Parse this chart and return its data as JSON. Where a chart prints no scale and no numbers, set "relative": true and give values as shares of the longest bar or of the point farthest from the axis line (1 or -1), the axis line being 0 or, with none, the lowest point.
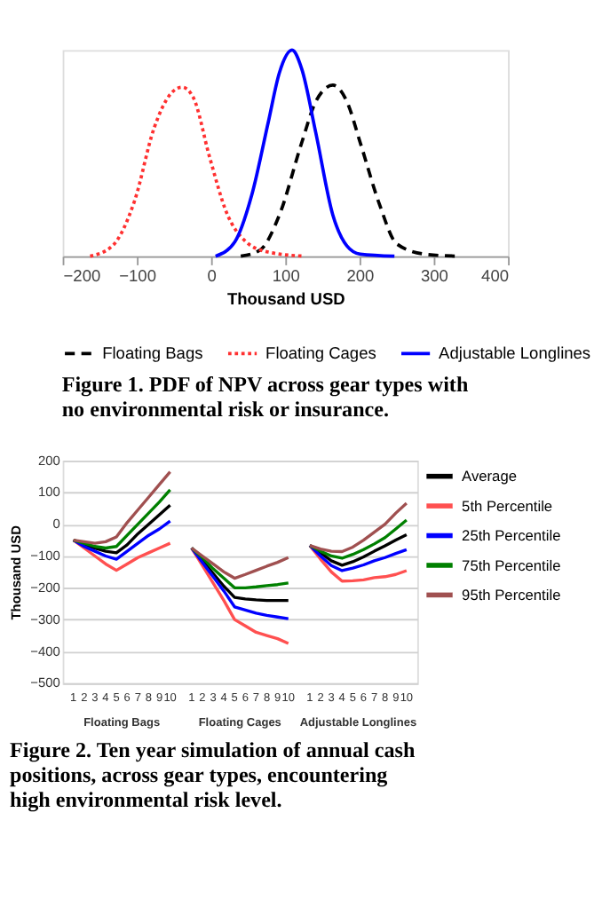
{
  "chart_data": [
    {
      "type": "line",
      "relative": true,
      "xlabel": "Thousand USD",
      "xlim": [
        -200,
        400
      ],
      "xticks": [
        -200,
        -100,
        0,
        100,
        200,
        300,
        400
      ],
      "legend": "bottom",
      "grid": false,
      "tick_labels": "x",
      "annotations": [
        "Figure 1.  PDF of NPV across gear types with no environmental risk or insurance."
      ],
      "series": [
        {
          "name": "Floating Bags",
          "color": "#000000",
          "line_style": "dashed",
          "x": [
            40,
            66,
            92,
            122,
            141,
            164,
            183,
            201,
            227,
            250,
            288,
            333
          ],
          "values": [
            0,
            0.03,
            0.2,
            0.55,
            0.75,
            0.83,
            0.75,
            0.55,
            0.25,
            0.06,
            0.01,
            0
          ]
        },
        {
          "name": "Floating Cages",
          "color": "#ff3030",
          "line_style": "dotted",
          "x": [
            -163,
            -133,
            -103,
            -77,
            -54,
            -39,
            -24,
            -2,
            21,
            47,
            77,
            126
          ],
          "values": [
            0,
            0.05,
            0.27,
            0.62,
            0.79,
            0.82,
            0.77,
            0.48,
            0.21,
            0.07,
            0.02,
            0
          ]
        },
        {
          "name": "Adjustable Longlines",
          "color": "#0000ff",
          "line_style": "solid",
          "x": [
            6,
            32,
            55,
            77,
            92,
            109,
            122,
            141,
            164,
            183,
            201,
            247
          ],
          "values": [
            0,
            0.07,
            0.3,
            0.65,
            0.89,
            1,
            0.91,
            0.6,
            0.2,
            0.05,
            0.01,
            0
          ]
        }
      ]
    },
    {
      "type": "line",
      "ylabel": "Thousand USD",
      "ylim": [
        -500,
        200
      ],
      "yticks": [
        -500,
        -400,
        -300,
        -200,
        -100,
        0,
        100,
        200
      ],
      "grid": "y",
      "legend": "right",
      "categories": [
        "1",
        "2",
        "3",
        "4",
        "5",
        "6",
        "7",
        "8",
        "9",
        "10",
        null,
        "1",
        "2",
        "3",
        "4",
        "5",
        "6",
        "7",
        "8",
        "9",
        "10",
        null,
        "1",
        "2",
        "3",
        "4",
        "5",
        "6",
        "7",
        "8",
        "9",
        "10"
      ],
      "annotations": [
        "Floating Bags",
        "Floating Cages",
        "Adjustable Longlines",
        "Figure 2. Ten year simulation of annual cash positions, across gear types, encountering high environmental risk level."
      ],
      "series": [
        {
          "name": "Average",
          "color": "#000000",
          "values": [
            -50,
            -65,
            -75,
            -85,
            -90,
            -65,
            -30,
            0,
            30,
            60,
            null,
            -75,
            -115,
            -155,
            -195,
            -230,
            -235,
            -238,
            -240,
            -240,
            -240,
            null,
            -67,
            -90,
            -115,
            -129,
            -118,
            -103,
            -85,
            -68,
            -50,
            -33
          ]
        },
        {
          "name": "5th Percentile",
          "color": "#ff5050",
          "values": [
            -50,
            -75,
            -100,
            -125,
            -145,
            -125,
            -105,
            -90,
            -75,
            -60,
            null,
            -75,
            -130,
            -185,
            -240,
            -300,
            -320,
            -340,
            -350,
            -360,
            -375,
            null,
            -67,
            -110,
            -150,
            -179,
            -178,
            -175,
            -168,
            -165,
            -158,
            -146
          ]
        },
        {
          "name": "25th Percentile",
          "color": "#0000ff",
          "values": [
            -50,
            -70,
            -85,
            -100,
            -110,
            -85,
            -60,
            -35,
            -15,
            10,
            null,
            -75,
            -120,
            -165,
            -210,
            -260,
            -270,
            -280,
            -287,
            -292,
            -297,
            null,
            -67,
            -100,
            -130,
            -146,
            -138,
            -128,
            -115,
            -105,
            -92,
            -80
          ]
        },
        {
          "name": "75th Percentile",
          "color": "#008000",
          "values": [
            -50,
            -60,
            -70,
            -75,
            -70,
            -35,
            0,
            35,
            70,
            108,
            null,
            -75,
            -105,
            -140,
            -170,
            -200,
            -200,
            -197,
            -193,
            -190,
            -185,
            null,
            -67,
            -85,
            -100,
            -107,
            -95,
            -80,
            -62,
            -42,
            -15,
            13
          ]
        },
        {
          "name": "95th Percentile",
          "color": "#a05050",
          "values": [
            -50,
            -55,
            -60,
            -55,
            -40,
            5,
            45,
            85,
            125,
            165,
            null,
            -75,
            -100,
            -125,
            -150,
            -170,
            -158,
            -145,
            -132,
            -120,
            -105,
            null,
            -67,
            -78,
            -85,
            -86,
            -72,
            -50,
            -25,
            0,
            35,
            66
          ]
        }
      ]
    }
  ]
}
